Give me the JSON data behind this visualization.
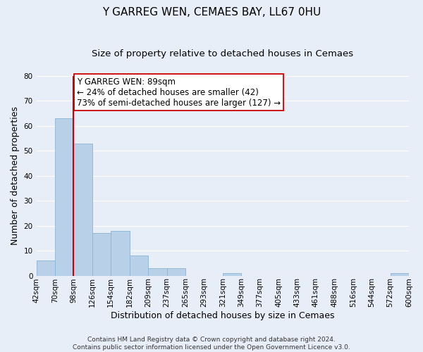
{
  "title": "Y GARREG WEN, CEMAES BAY, LL67 0HU",
  "subtitle": "Size of property relative to detached houses in Cemaes",
  "xlabel": "Distribution of detached houses by size in Cemaes",
  "ylabel": "Number of detached properties",
  "bin_labels": [
    "42sqm",
    "70sqm",
    "98sqm",
    "126sqm",
    "154sqm",
    "182sqm",
    "209sqm",
    "237sqm",
    "265sqm",
    "293sqm",
    "321sqm",
    "349sqm",
    "377sqm",
    "405sqm",
    "433sqm",
    "461sqm",
    "488sqm",
    "516sqm",
    "544sqm",
    "572sqm",
    "600sqm"
  ],
  "bar_heights": [
    6,
    63,
    53,
    17,
    18,
    8,
    3,
    3,
    0,
    0,
    1,
    0,
    0,
    0,
    0,
    0,
    0,
    0,
    0,
    1
  ],
  "bar_color": "#b8d0e8",
  "bar_edge_color": "#8ab4d4",
  "marker_label": "Y GARREG WEN: 89sqm",
  "annotation_line1": "← 24% of detached houses are smaller (42)",
  "annotation_line2": "73% of semi-detached houses are larger (127) →",
  "annotation_box_color": "#ffffff",
  "annotation_box_edge_color": "#cc0000",
  "marker_line_color": "#cc0000",
  "ylim": [
    0,
    80
  ],
  "yticks": [
    0,
    10,
    20,
    30,
    40,
    50,
    60,
    70,
    80
  ],
  "footer_line1": "Contains HM Land Registry data © Crown copyright and database right 2024.",
  "footer_line2": "Contains public sector information licensed under the Open Government Licence v3.0.",
  "background_color": "#e8eef8",
  "grid_color": "#ffffff",
  "title_fontsize": 11,
  "subtitle_fontsize": 9.5,
  "axis_label_fontsize": 9,
  "tick_fontsize": 7.5,
  "footer_fontsize": 6.5,
  "annotation_fontsize": 8.5
}
